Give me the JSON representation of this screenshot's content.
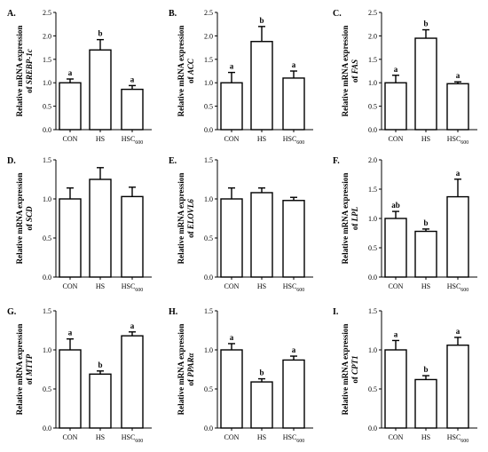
{
  "chart_data": [
    {
      "type": "bar",
      "panel": "A.",
      "ylabel_line1": "Relative mRNA expression",
      "ylabel_line2_prefix": "of ",
      "gene": "SREBP-1c",
      "categories": [
        "CON",
        "HS",
        "HSC600"
      ],
      "values": [
        1.0,
        1.7,
        0.86
      ],
      "errors": [
        0.08,
        0.22,
        0.08
      ],
      "significance": [
        "a",
        "b",
        "a"
      ],
      "ylim": [
        0,
        2.5
      ],
      "yticks": [
        "0.0",
        "0.5",
        "1.0",
        "1.5",
        "2.0",
        "2.5"
      ]
    },
    {
      "type": "bar",
      "panel": "B.",
      "ylabel_line1": "Relative mRNA expression",
      "ylabel_line2_prefix": "of ",
      "gene": "ACC",
      "categories": [
        "CON",
        "HS",
        "HSC600"
      ],
      "values": [
        1.0,
        1.88,
        1.1
      ],
      "errors": [
        0.22,
        0.32,
        0.15
      ],
      "significance": [
        "a",
        "b",
        "a"
      ],
      "ylim": [
        0,
        2.5
      ],
      "yticks": [
        "0.0",
        "0.5",
        "1.0",
        "1.5",
        "2.0",
        "2.5"
      ]
    },
    {
      "type": "bar",
      "panel": "C.",
      "ylabel_line1": "Relative mRNA expression",
      "ylabel_line2_prefix": "of ",
      "gene": "FAS",
      "categories": [
        "CON",
        "HS",
        "HSC600"
      ],
      "values": [
        1.0,
        1.95,
        0.98
      ],
      "errors": [
        0.16,
        0.18,
        0.04
      ],
      "significance": [
        "a",
        "b",
        "a"
      ],
      "ylim": [
        0,
        2.5
      ],
      "yticks": [
        "0.0",
        "0.5",
        "1.0",
        "1.5",
        "2.0",
        "2.5"
      ]
    },
    {
      "type": "bar",
      "panel": "D.",
      "ylabel_line1": "Relative mRNA expression",
      "ylabel_line2_prefix": "of ",
      "gene": "SCD",
      "categories": [
        "CON",
        "HS",
        "HSC600"
      ],
      "values": [
        1.0,
        1.25,
        1.03
      ],
      "errors": [
        0.14,
        0.15,
        0.12
      ],
      "significance": [
        "",
        "",
        ""
      ],
      "ylim": [
        0,
        1.5
      ],
      "yticks": [
        "0.0",
        "0.5",
        "1.0",
        "1.5"
      ]
    },
    {
      "type": "bar",
      "panel": "E.",
      "ylabel_line1": "Relative mRNA expression",
      "ylabel_line2_prefix": "of ",
      "gene": "ELOVL6",
      "categories": [
        "CON",
        "HS",
        "HSC600"
      ],
      "values": [
        1.0,
        1.08,
        0.98
      ],
      "errors": [
        0.14,
        0.06,
        0.04
      ],
      "significance": [
        "",
        "",
        ""
      ],
      "ylim": [
        0,
        1.5
      ],
      "yticks": [
        "0.0",
        "0.5",
        "1.0",
        "1.5"
      ]
    },
    {
      "type": "bar",
      "panel": "F.",
      "ylabel_line1": "Relative mRNA expression",
      "ylabel_line2_prefix": "of ",
      "gene": "LPL",
      "categories": [
        "CON",
        "HS",
        "HSC600"
      ],
      "values": [
        1.0,
        0.78,
        1.37
      ],
      "errors": [
        0.12,
        0.04,
        0.3
      ],
      "significance": [
        "ab",
        "b",
        "a"
      ],
      "ylim": [
        0,
        2.0
      ],
      "yticks": [
        "0.0",
        "0.5",
        "1.0",
        "1.5",
        "2.0"
      ]
    },
    {
      "type": "bar",
      "panel": "G.",
      "ylabel_line1": "Relative mRNA expression",
      "ylabel_line2_prefix": "of ",
      "gene": "MTTP",
      "categories": [
        "CON",
        "HS",
        "HSC600"
      ],
      "values": [
        1.0,
        0.69,
        1.18
      ],
      "errors": [
        0.14,
        0.04,
        0.05
      ],
      "significance": [
        "a",
        "b",
        "a"
      ],
      "ylim": [
        0,
        1.5
      ],
      "yticks": [
        "0.0",
        "0.5",
        "1.0",
        "1.5"
      ]
    },
    {
      "type": "bar",
      "panel": "H.",
      "ylabel_line1": "Relative mRNA expression",
      "ylabel_line2_prefix": "of ",
      "gene": "PPARα",
      "categories": [
        "CON",
        "HS",
        "HSC600"
      ],
      "values": [
        1.0,
        0.59,
        0.87
      ],
      "errors": [
        0.08,
        0.04,
        0.05
      ],
      "significance": [
        "a",
        "b",
        "a"
      ],
      "ylim": [
        0,
        1.5
      ],
      "yticks": [
        "0.0",
        "0.5",
        "1.0",
        "1.5"
      ]
    },
    {
      "type": "bar",
      "panel": "I.",
      "ylabel_line1": "Relative mRNA expression",
      "ylabel_line2_prefix": "of ",
      "gene": "CPT1",
      "categories": [
        "CON",
        "HS",
        "HSC600"
      ],
      "values": [
        1.0,
        0.62,
        1.06
      ],
      "errors": [
        0.12,
        0.05,
        0.1
      ],
      "significance": [
        "a",
        "b",
        "a"
      ],
      "ylim": [
        0,
        1.5
      ],
      "yticks": [
        "0.0",
        "0.5",
        "1.0",
        "1.5"
      ]
    }
  ]
}
